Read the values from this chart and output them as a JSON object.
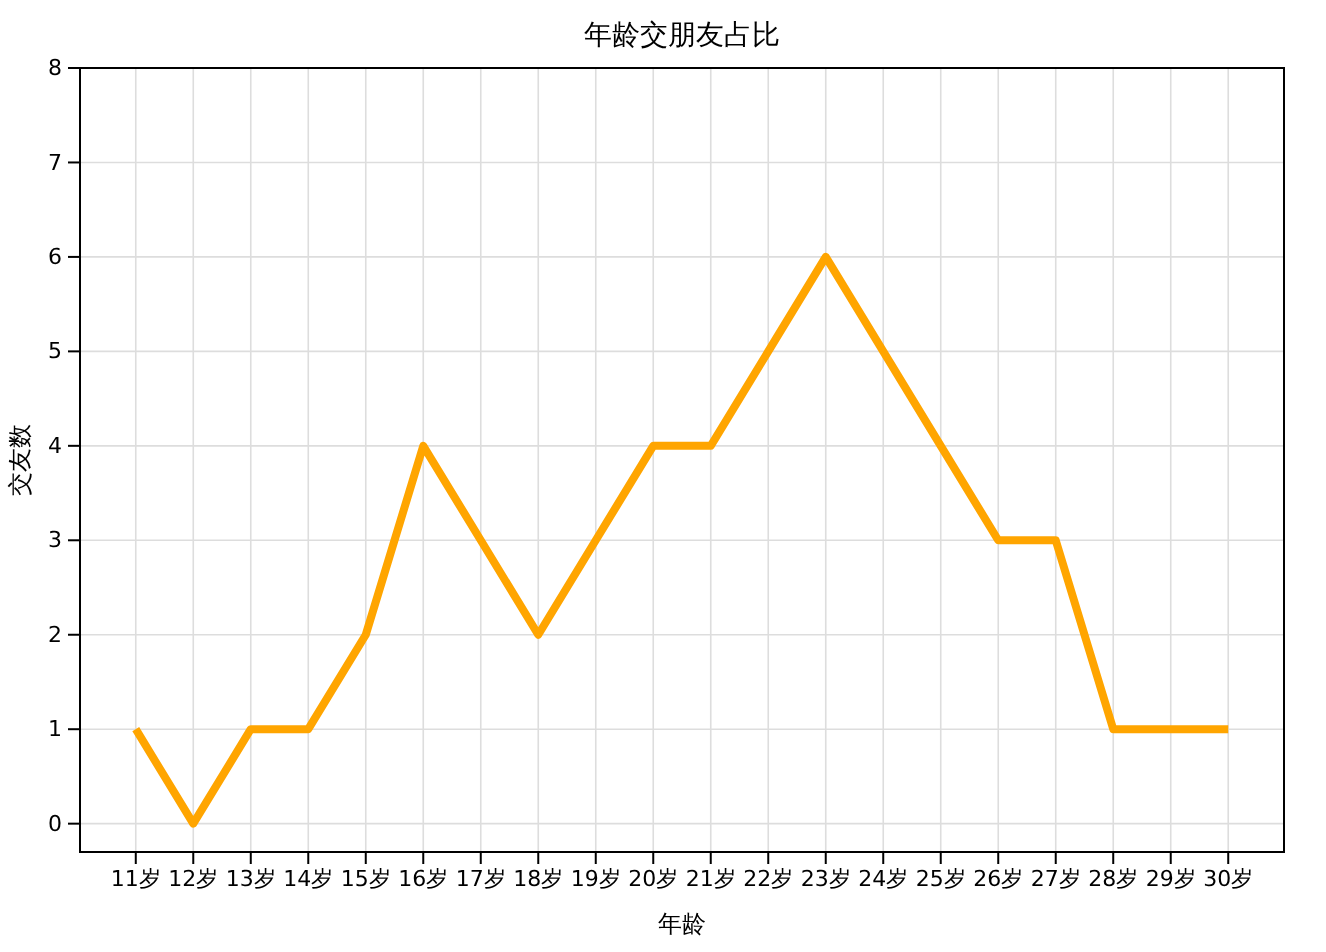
{
  "chart_data": {
    "type": "line",
    "title": "年龄交朋友占比",
    "xlabel": "年龄",
    "ylabel": "交友数",
    "categories": [
      "11岁",
      "12岁",
      "13岁",
      "14岁",
      "15岁",
      "16岁",
      "17岁",
      "18岁",
      "19岁",
      "20岁",
      "21岁",
      "22岁",
      "23岁",
      "24岁",
      "25岁",
      "26岁",
      "27岁",
      "28岁",
      "29岁",
      "30岁"
    ],
    "series": [
      {
        "color": "#ffa500",
        "values": [
          1,
          0,
          1,
          1,
          2,
          4,
          3,
          2,
          3,
          4,
          4,
          5,
          6,
          5,
          4,
          3,
          3,
          1,
          1,
          1
        ]
      }
    ],
    "ylim": [
      -0.3,
      8
    ],
    "yticks": [
      0,
      1,
      2,
      3,
      4,
      5,
      6,
      7,
      8
    ],
    "grid": true,
    "marker": "none",
    "line_style": "solid"
  }
}
